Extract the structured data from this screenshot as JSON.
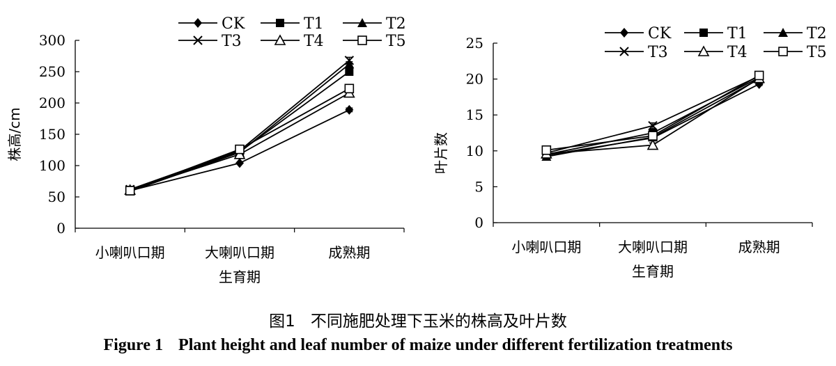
{
  "figure": {
    "caption_zh_num": "图1",
    "caption_zh_text": "不同施肥处理下玉米的株高及叶片数",
    "caption_en_num": "Figure 1",
    "caption_en_text": "Plant height and leaf number of maize under different fertilization treatments"
  },
  "chart_data": [
    {
      "type": "line",
      "title": "",
      "xlabel": "生育期",
      "ylabel": "株高/cm",
      "categories": [
        "小喇叭口期",
        "大喇叭口期",
        "成熟期"
      ],
      "ylim": [
        0,
        300
      ],
      "yticks": [
        "0",
        "50",
        "100",
        "150",
        "200",
        "250",
        "300"
      ],
      "grid": false,
      "legend_position": "top",
      "series": [
        {
          "name": "CK",
          "marker": "diamond",
          "values": [
            60,
            104,
            189
          ],
          "errors": [
            0,
            0,
            3
          ]
        },
        {
          "name": "T1",
          "marker": "square",
          "values": [
            61,
            122,
            250
          ],
          "errors": [
            0,
            0,
            4
          ]
        },
        {
          "name": "T2",
          "marker": "triangle",
          "values": [
            59,
            121,
            262
          ],
          "errors": [
            0,
            0,
            4
          ]
        },
        {
          "name": "T3",
          "marker": "x",
          "values": [
            62,
            124,
            268
          ],
          "errors": [
            0,
            0,
            5
          ]
        },
        {
          "name": "T4",
          "marker": "triangle-open",
          "values": [
            61,
            118,
            216
          ],
          "errors": [
            0,
            0,
            4
          ]
        },
        {
          "name": "T5",
          "marker": "square-open",
          "values": [
            60,
            126,
            223
          ],
          "errors": [
            0,
            0,
            4
          ]
        }
      ]
    },
    {
      "type": "line",
      "title": "",
      "xlabel": "生育期",
      "ylabel": "叶片数",
      "categories": [
        "小喇叭口期",
        "大喇叭口期",
        "成熟期"
      ],
      "ylim": [
        0,
        25
      ],
      "yticks": [
        "0",
        "5",
        "10",
        "15",
        "20",
        "25"
      ],
      "grid": false,
      "legend_position": "top",
      "series": [
        {
          "name": "CK",
          "marker": "diamond",
          "values": [
            9.4,
            11.8,
            19.3
          ],
          "errors": [
            0,
            0,
            0.2
          ]
        },
        {
          "name": "T1",
          "marker": "square",
          "values": [
            9.5,
            12.5,
            20.2
          ],
          "errors": [
            0,
            0.3,
            0.2
          ]
        },
        {
          "name": "T2",
          "marker": "triangle",
          "values": [
            9.2,
            11.9,
            20.0
          ],
          "errors": [
            0,
            0.3,
            0.2
          ]
        },
        {
          "name": "T3",
          "marker": "x",
          "values": [
            9.7,
            13.5,
            20.4
          ],
          "errors": [
            0,
            0.4,
            0.2
          ]
        },
        {
          "name": "T4",
          "marker": "triangle-open",
          "values": [
            9.6,
            10.8,
            20.1
          ],
          "errors": [
            0,
            0.3,
            0.2
          ]
        },
        {
          "name": "T5",
          "marker": "square-open",
          "values": [
            10.1,
            12.1,
            20.5
          ],
          "errors": [
            0,
            0.3,
            0.2
          ]
        }
      ]
    }
  ]
}
